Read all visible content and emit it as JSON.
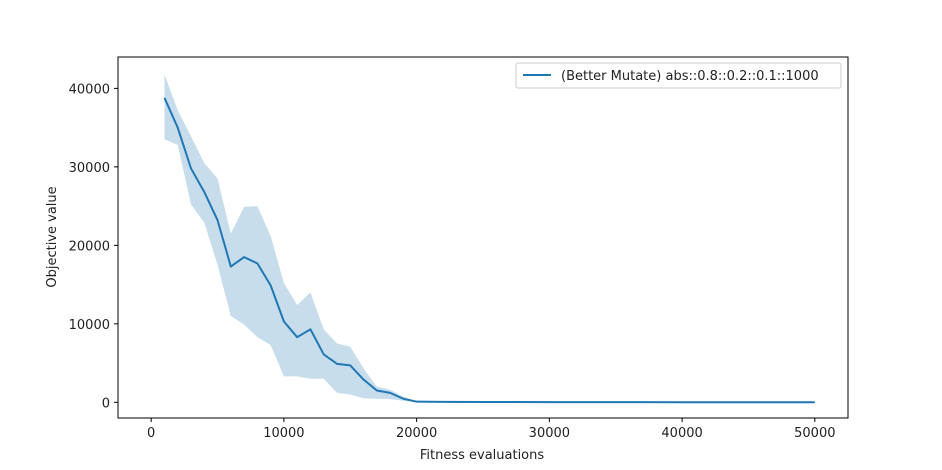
{
  "chart_data": {
    "type": "line",
    "xlabel": "Fitness evaluations",
    "ylabel": "Objective value",
    "xlim": [
      -2500,
      52500
    ],
    "ylim": [
      -2000,
      44000
    ],
    "xticks": [
      0,
      10000,
      20000,
      30000,
      40000,
      50000
    ],
    "xtick_labels": [
      "0",
      "10000",
      "20000",
      "30000",
      "40000",
      "50000"
    ],
    "yticks": [
      0,
      10000,
      20000,
      30000,
      40000
    ],
    "ytick_labels": [
      "0",
      "10000",
      "20000",
      "30000",
      "40000"
    ],
    "legend_position": "top-right",
    "colors": {
      "line": "#1f77b4",
      "band": "#1f77b4",
      "band_opacity": 0.25
    },
    "series": [
      {
        "name": "(Better Mutate) abs::0.8::0.2::0.1::1000",
        "x": [
          1000,
          2000,
          3000,
          4000,
          5000,
          6000,
          7000,
          8000,
          9000,
          10000,
          11000,
          12000,
          13000,
          14000,
          15000,
          16000,
          17000,
          18000,
          19000,
          20000,
          22000,
          25000,
          30000,
          35000,
          40000,
          45000,
          48000,
          50000
        ],
        "y": [
          38800,
          35000,
          29800,
          26800,
          23200,
          17300,
          18500,
          17700,
          14900,
          10300,
          8300,
          9300,
          6100,
          4900,
          4700,
          2900,
          1500,
          1200,
          450,
          80,
          60,
          40,
          30,
          20,
          15,
          10,
          5,
          5
        ],
        "upper": [
          41800,
          37200,
          33900,
          30500,
          28500,
          21500,
          24900,
          25000,
          21200,
          15200,
          12400,
          14000,
          9300,
          7500,
          7100,
          4300,
          2000,
          1600,
          700,
          150,
          100,
          80,
          60,
          50,
          40,
          30,
          20,
          15
        ],
        "lower": [
          33500,
          32800,
          25200,
          22900,
          17500,
          11000,
          9900,
          8300,
          7300,
          3300,
          3300,
          3000,
          3000,
          1200,
          1000,
          500,
          450,
          400,
          200,
          30,
          20,
          10,
          5,
          0,
          0,
          0,
          0,
          0
        ]
      }
    ]
  }
}
